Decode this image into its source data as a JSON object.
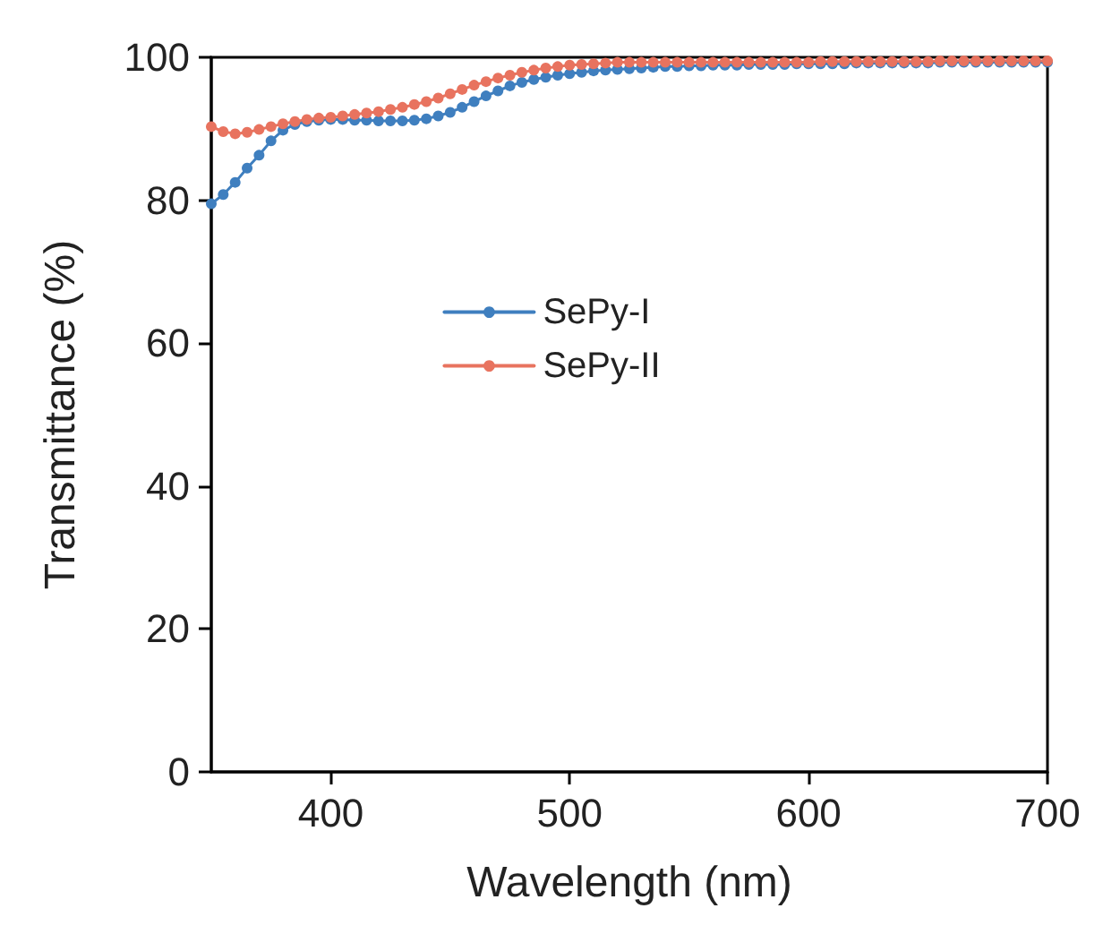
{
  "chart_data": {
    "type": "line",
    "xlabel": "Wavelength (nm)",
    "ylabel": "Transmittance (%)",
    "x": [
      350,
      355,
      360,
      365,
      370,
      375,
      380,
      385,
      390,
      395,
      400,
      405,
      410,
      415,
      420,
      425,
      430,
      435,
      440,
      445,
      450,
      455,
      460,
      465,
      470,
      475,
      480,
      485,
      490,
      495,
      500,
      505,
      510,
      515,
      520,
      525,
      530,
      535,
      540,
      545,
      550,
      555,
      560,
      565,
      570,
      575,
      580,
      585,
      590,
      595,
      600,
      605,
      610,
      615,
      620,
      625,
      630,
      635,
      640,
      645,
      650,
      655,
      660,
      665,
      670,
      675,
      680,
      685,
      690,
      695,
      700
    ],
    "series": [
      {
        "name": "SePy-I",
        "color": "#3f7fbf",
        "values": [
          79.5,
          80.8,
          82.5,
          84.5,
          86.3,
          88.3,
          89.8,
          90.6,
          91.0,
          91.2,
          91.3,
          91.3,
          91.2,
          91.2,
          91.1,
          91.1,
          91.1,
          91.2,
          91.4,
          91.8,
          92.3,
          93.0,
          93.8,
          94.6,
          95.3,
          96.0,
          96.5,
          96.9,
          97.2,
          97.5,
          97.7,
          97.9,
          98.1,
          98.2,
          98.3,
          98.4,
          98.5,
          98.6,
          98.7,
          98.7,
          98.8,
          98.8,
          98.9,
          98.9,
          98.9,
          99.0,
          99.0,
          99.0,
          99.0,
          99.1,
          99.1,
          99.1,
          99.1,
          99.1,
          99.2,
          99.2,
          99.2,
          99.2,
          99.2,
          99.2,
          99.2,
          99.3,
          99.3,
          99.3,
          99.3,
          99.3,
          99.3,
          99.3,
          99.3,
          99.3,
          99.3
        ]
      },
      {
        "name": "SePy-II",
        "color": "#e8735f",
        "values": [
          90.3,
          89.6,
          89.3,
          89.5,
          89.9,
          90.3,
          90.7,
          91.0,
          91.3,
          91.5,
          91.6,
          91.8,
          92.0,
          92.2,
          92.4,
          92.7,
          93.0,
          93.4,
          93.8,
          94.3,
          94.9,
          95.5,
          96.1,
          96.6,
          97.1,
          97.5,
          97.9,
          98.2,
          98.5,
          98.7,
          98.9,
          99.0,
          99.1,
          99.2,
          99.3,
          99.3,
          99.3,
          99.3,
          99.3,
          99.3,
          99.3,
          99.3,
          99.3,
          99.3,
          99.3,
          99.3,
          99.3,
          99.3,
          99.3,
          99.3,
          99.3,
          99.4,
          99.4,
          99.4,
          99.4,
          99.4,
          99.4,
          99.4,
          99.4,
          99.4,
          99.4,
          99.5,
          99.5,
          99.5,
          99.5,
          99.5,
          99.5,
          99.5,
          99.5,
          99.5,
          99.5
        ]
      }
    ],
    "xlim": [
      350,
      700
    ],
    "xticks": [
      400,
      500,
      600,
      700
    ],
    "ylim": [
      0,
      100
    ],
    "yticks": [
      0,
      20,
      40,
      60,
      80,
      100
    ],
    "grid": false,
    "legend": "center",
    "marker": "circle",
    "line_style": "solid"
  }
}
